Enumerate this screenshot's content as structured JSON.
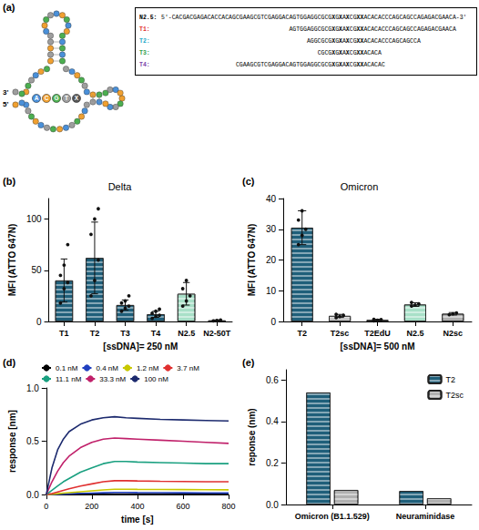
{
  "diagram": {
    "panel": "(a)",
    "structure_labels": [
      "3'",
      "5'"
    ],
    "bases": [
      {
        "label": "A",
        "color": "#4a90d9"
      },
      {
        "label": "C",
        "color": "#f0a030"
      },
      {
        "label": "G",
        "color": "#4caf50"
      },
      {
        "label": "T",
        "color": "#9e9e9e"
      },
      {
        "label": "X",
        "color": "#555555"
      }
    ],
    "alignment": [
      {
        "name": "N2.5:",
        "color": "#000000",
        "sequence": "5'-CACGACGAGACACCACAGCGAAGCGTCGAGGACAGTGGAGGCGCGXGXAXCGXXACACACCCAGCAGCCAGAGACGAACA-3'"
      },
      {
        "name": "T1:",
        "color": "#e03030",
        "sequence": "AGTGGAGGCGCGXGXAXCGXXACACACCCAGCAGCCAGAGACGAACA"
      },
      {
        "name": "T2:",
        "color": "#1fa8c8",
        "sequence": "AGGCGCGXGXAXCGXXACACACCCAGCAGCCA"
      },
      {
        "name": "T3:",
        "color": "#2e9e4a",
        "sequence": "CGCGXGXAXCGXXACACA"
      },
      {
        "name": "T4:",
        "color": "#7a3fa8",
        "sequence": "CGAAGCGTCGAGGACAGTGGAGGCGCGXGXAXCGXXACACAC"
      }
    ]
  },
  "chart_data": [
    {
      "panel": "(b)",
      "type": "bar",
      "title": "Delta",
      "categories": [
        "T1",
        "T2",
        "T3",
        "T4",
        "N2.5",
        "N2-50T"
      ],
      "values": [
        40,
        62,
        16,
        7,
        27,
        1
      ],
      "errors": [
        21,
        35,
        5,
        3,
        11,
        0.5
      ],
      "points": [
        [
          18,
          32,
          38,
          45,
          55,
          75
        ],
        [
          25,
          40,
          60,
          85,
          100,
          110
        ],
        [
          10,
          13,
          15,
          18,
          20,
          25
        ],
        [
          3,
          5,
          6,
          8,
          10,
          12
        ],
        [
          15,
          20,
          25,
          32,
          40
        ],
        [
          0.5,
          1,
          1.5
        ]
      ],
      "colors": [
        "#1f5f7a",
        "#1f5f7a",
        "#1f5f7a",
        "#1f5f7a",
        "#a8e0c8",
        "#b0b0b0"
      ],
      "ylim": [
        0,
        120
      ],
      "yticks": [
        0,
        50,
        100
      ],
      "y_label": "MFI (ATTO 647N)",
      "x_label": "[ssDNA]= 250 nM"
    },
    {
      "panel": "(c)",
      "type": "bar",
      "title": "Omicron",
      "categories": [
        "T2",
        "T2sc",
        "T2EdU",
        "N2.5",
        "N2sc"
      ],
      "values": [
        30.5,
        1.8,
        0.5,
        5.5,
        2.5
      ],
      "errors": [
        5.5,
        0.5,
        0.2,
        0.6,
        0.4
      ],
      "points": [
        [
          25,
          28,
          30,
          33,
          36
        ],
        [
          1.2,
          1.6,
          2,
          2.3
        ],
        [
          0.2,
          0.4,
          0.6,
          0.7
        ],
        [
          5,
          5.3,
          5.7,
          6.2
        ],
        [
          2.2,
          2.5,
          2.8
        ]
      ],
      "colors": [
        "#1f5f7a",
        "#c8c8c8",
        "#7a7a7a",
        "#a8e0c8",
        "#b0b0b0"
      ],
      "ylim": [
        0,
        40
      ],
      "yticks": [
        0,
        10,
        20,
        30,
        40
      ],
      "y_label": "MFI (ATTO 647N)",
      "x_label": "[ssDNA]= 500 nM"
    },
    {
      "panel": "(d)",
      "type": "line",
      "x": [
        0,
        25,
        50,
        75,
        100,
        150,
        200,
        250,
        300,
        350,
        400,
        500,
        600,
        700,
        800
      ],
      "series": [
        {
          "name": "0.1 nM",
          "color": "#000000",
          "values": [
            0,
            0.001,
            0.001,
            0.002,
            0.002,
            0.003,
            0.004,
            0.004,
            0.005,
            0.005,
            0.005,
            0.004,
            0.004,
            0.003,
            0.003
          ]
        },
        {
          "name": "0.4 nM",
          "color": "#2040c0",
          "values": [
            0,
            0.002,
            0.004,
            0.006,
            0.008,
            0.011,
            0.014,
            0.017,
            0.02,
            0.02,
            0.019,
            0.018,
            0.017,
            0.016,
            0.015
          ]
        },
        {
          "name": "1.2 nM",
          "color": "#c8c800",
          "values": [
            0,
            0.004,
            0.008,
            0.013,
            0.018,
            0.027,
            0.035,
            0.043,
            0.05,
            0.05,
            0.049,
            0.048,
            0.047,
            0.046,
            0.045
          ]
        },
        {
          "name": "3.7 nM",
          "color": "#e03030",
          "values": [
            0,
            0.01,
            0.025,
            0.04,
            0.055,
            0.08,
            0.1,
            0.12,
            0.13,
            0.13,
            0.128,
            0.125,
            0.123,
            0.12,
            0.12
          ]
        },
        {
          "name": "11.1 nM",
          "color": "#1aa080",
          "values": [
            0,
            0.04,
            0.08,
            0.12,
            0.15,
            0.21,
            0.25,
            0.29,
            0.31,
            0.31,
            0.305,
            0.3,
            0.295,
            0.29,
            0.29
          ]
        },
        {
          "name": "33.3 nM",
          "color": "#c0206a",
          "values": [
            0,
            0.12,
            0.22,
            0.3,
            0.36,
            0.44,
            0.49,
            0.52,
            0.53,
            0.525,
            0.52,
            0.51,
            0.5,
            0.49,
            0.48
          ]
        },
        {
          "name": "100 nM",
          "color": "#1c2a6e",
          "values": [
            0,
            0.25,
            0.42,
            0.52,
            0.59,
            0.66,
            0.7,
            0.72,
            0.73,
            0.72,
            0.715,
            0.705,
            0.7,
            0.695,
            0.69
          ]
        }
      ],
      "xlim": [
        0,
        800
      ],
      "xticks": [
        0,
        200,
        400,
        600,
        800
      ],
      "ylim": [
        0,
        1
      ],
      "yticks": [
        {
          "value": 0,
          "label": "0.0"
        },
        0.5,
        {
          "value": 1,
          "label": "1.0"
        }
      ],
      "x_label": "time [s]",
      "y_label": "response [nm]",
      "legend": "top"
    },
    {
      "panel": "(e)",
      "type": "bar",
      "categories": [
        "Omicron (B1.1.529)",
        "Neuraminidase"
      ],
      "series": [
        {
          "name": "T2",
          "color": "#1f5f7a",
          "values": [
            0.54,
            0.065
          ]
        },
        {
          "name": "T2sc",
          "color": "#b0b0b0",
          "values": [
            0.07,
            0.03
          ]
        }
      ],
      "ylim": [
        0,
        0.65
      ],
      "yticks": [
        {
          "value": 0,
          "label": "0.0"
        },
        0.2,
        0.4,
        0.6
      ],
      "y_label": "reponse (nm)",
      "legend": "top-right"
    }
  ]
}
